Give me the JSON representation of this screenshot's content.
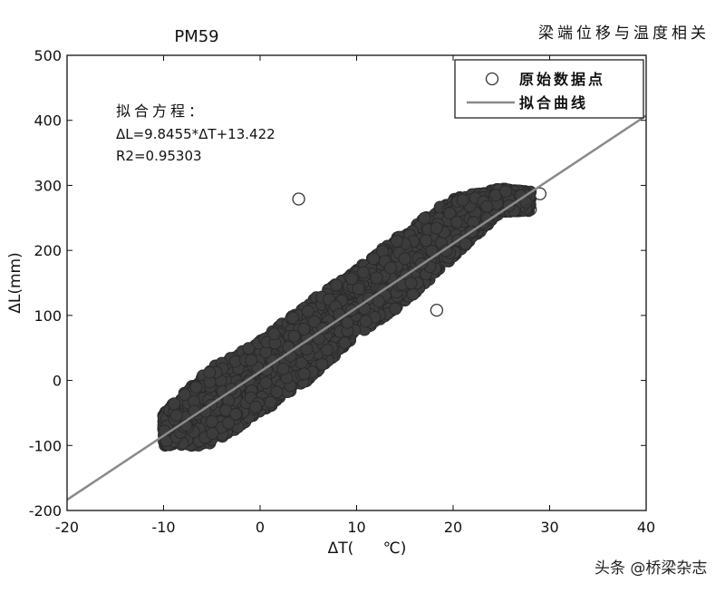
{
  "header": {
    "chart_title": "PM59",
    "right_title": "梁端位移与温度相关"
  },
  "watermark": "头条 @桥梁杂志",
  "chart_data": {
    "type": "scatter",
    "title": "PM59",
    "xlabel": "ΔT(      ℃)",
    "ylabel": "ΔL(mm)",
    "xlim": [
      -20,
      40
    ],
    "ylim": [
      -200,
      500
    ],
    "xticks": [
      -20,
      -10,
      0,
      10,
      20,
      30,
      40
    ],
    "yticks": [
      -200,
      -100,
      0,
      100,
      200,
      300,
      400,
      500
    ],
    "grid": false,
    "legend_position": "top-right",
    "annotation": {
      "heading": "拟合方程：",
      "equation": "ΔL=9.8455*ΔT+13.422",
      "r2": "R2=0.95303"
    },
    "series": [
      {
        "name": "原始数据点",
        "kind": "scatter",
        "marker": "open-circle",
        "color": "#3a3a3a",
        "cloud_envelope_upper": [
          [
            -10,
            -50
          ],
          [
            -5,
            20
          ],
          [
            0,
            60
          ],
          [
            5,
            120
          ],
          [
            10,
            170
          ],
          [
            15,
            230
          ],
          [
            20,
            280
          ],
          [
            25,
            295
          ],
          [
            28,
            290
          ]
        ],
        "cloud_envelope_lower": [
          [
            -10,
            -100
          ],
          [
            -5,
            -100
          ],
          [
            0,
            -50
          ],
          [
            5,
            0
          ],
          [
            10,
            70
          ],
          [
            15,
            120
          ],
          [
            20,
            190
          ],
          [
            25,
            260
          ],
          [
            28,
            260
          ]
        ],
        "outliers": [
          [
            4,
            279
          ],
          [
            29,
            287
          ],
          [
            28,
            263
          ],
          [
            18.3,
            108
          ]
        ]
      },
      {
        "name": "拟合曲线",
        "kind": "line",
        "color": "#8a8a8a",
        "slope": 9.8455,
        "intercept": 13.422,
        "x_range": [
          -20,
          40
        ]
      }
    ]
  }
}
